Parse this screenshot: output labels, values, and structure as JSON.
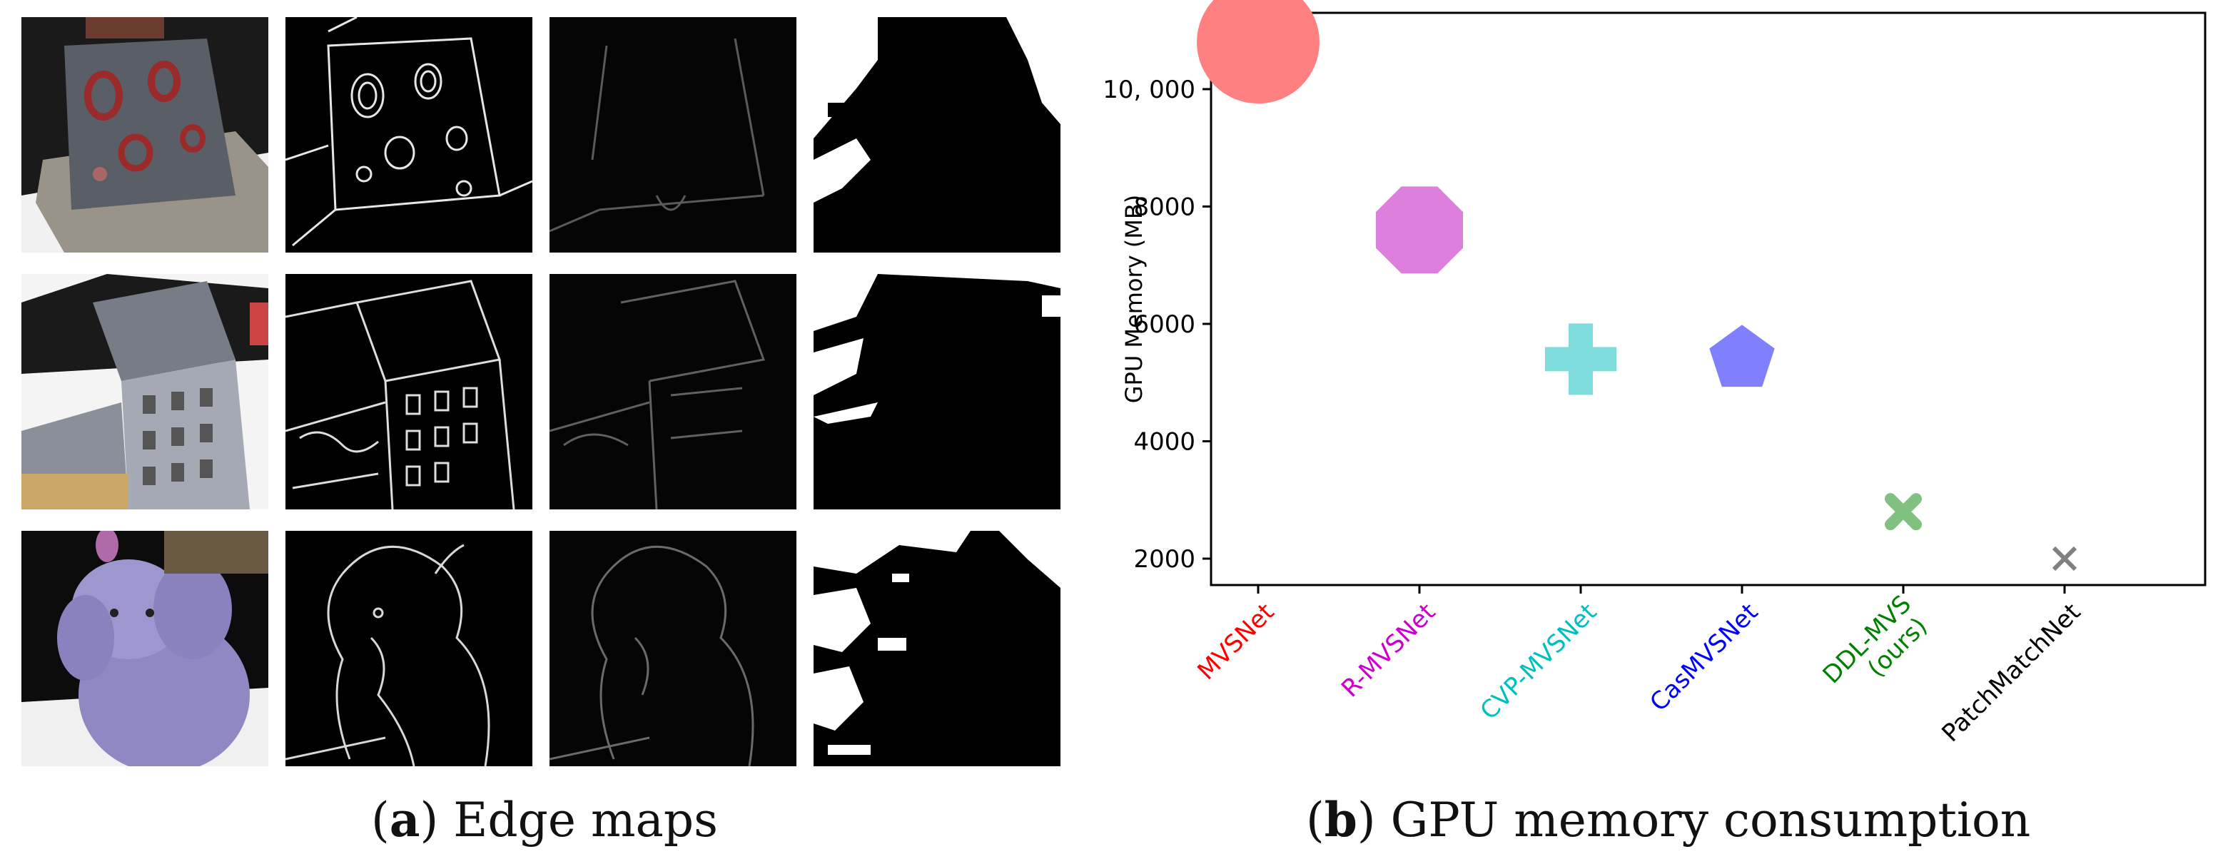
{
  "figure": {
    "panel_a": {
      "label": "a",
      "text": "Edge maps"
    },
    "panel_b": {
      "label": "b",
      "text": "GPU memory consumption"
    }
  },
  "edge_map_grid": {
    "rows": [
      {
        "scene": "kettle",
        "columns": [
          "input-image",
          "edge-map",
          "edge-map-faint",
          "binary-mask"
        ]
      },
      {
        "scene": "building",
        "columns": [
          "input-image",
          "edge-map",
          "edge-map-faint",
          "binary-mask"
        ]
      },
      {
        "scene": "elephant",
        "columns": [
          "input-image",
          "edge-map",
          "edge-map-faint",
          "binary-mask"
        ]
      }
    ]
  },
  "chart_data": {
    "type": "scatter",
    "title": "",
    "xlabel": "",
    "ylabel": "GPU Memory (MB)",
    "ylim": [
      1550,
      11300
    ],
    "yticks": [
      {
        "value": 2000,
        "label": "2000"
      },
      {
        "value": 4000,
        "label": "4000"
      },
      {
        "value": 6000,
        "label": "6000"
      },
      {
        "value": 8000,
        "label": "8000"
      },
      {
        "value": 10000,
        "label": "10, 000"
      }
    ],
    "categories": [
      "MVSNet",
      "R-MVSNet",
      "CVP-MVSNet",
      "CasMVSNet",
      "DDL-MVS (ours)",
      "PatchMatchNet"
    ],
    "points": [
      {
        "name": "MVSNet",
        "value": 10800,
        "marker": "circle",
        "color": "#ff8080",
        "label_color": "#ff0000"
      },
      {
        "name": "R-MVSNet",
        "value": 7600,
        "marker": "octagon",
        "color": "#dd80dd",
        "label_color": "#cc00cc"
      },
      {
        "name": "CVP-MVSNet",
        "value": 5400,
        "marker": "plus",
        "color": "#7fdcdc",
        "label_color": "#00bfbf"
      },
      {
        "name": "CasMVSNet",
        "value": 5400,
        "marker": "pentagon",
        "color": "#8080ff",
        "label_color": "#0000ff"
      },
      {
        "name": "DDL-MVS (ours)",
        "value": 2800,
        "marker": "x-thick",
        "color": "#80c080",
        "label_color": "#008000"
      },
      {
        "name": "PatchMatchNet",
        "value": 2000,
        "marker": "x-thin",
        "color": "#808080",
        "label_color": "#000000"
      }
    ],
    "grid": false,
    "legend": "none"
  }
}
